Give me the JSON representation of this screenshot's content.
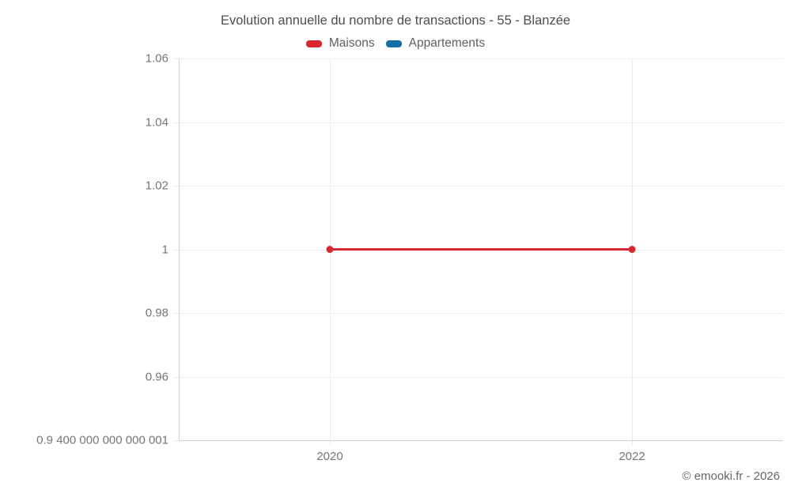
{
  "footer": {
    "credit": "© emooki.fr - 2026"
  },
  "chart_data": {
    "type": "line",
    "title": "Evolution annuelle du nombre de transactions - 55 - Blanzée",
    "xlabel": "",
    "ylabel": "",
    "xlim": [
      2019,
      2023
    ],
    "ylim": [
      0.94,
      1.06
    ],
    "grid": true,
    "legend_position": "top",
    "background_color": "#ffffff",
    "grid_color": "#ededed",
    "axis_color": "#d4d4d4",
    "tick_label_color": "#757575",
    "xticks": [
      {
        "value": 2020,
        "label": "2020"
      },
      {
        "value": 2022,
        "label": "2022"
      }
    ],
    "yticks": [
      {
        "value": 1.06,
        "label": "1.06"
      },
      {
        "value": 1.04,
        "label": "1.04"
      },
      {
        "value": 1.02,
        "label": "1.02"
      },
      {
        "value": 1,
        "label": "1"
      },
      {
        "value": 0.98,
        "label": "0.98"
      },
      {
        "value": 0.96,
        "label": "0.96"
      },
      {
        "value": 0.94,
        "label": "0.9 400 000 000 000 001"
      }
    ],
    "series": [
      {
        "name": "Maisons",
        "color": "#d7282f",
        "points": [
          [
            2020,
            1
          ],
          [
            2022,
            1
          ]
        ]
      },
      {
        "name": "Appartements",
        "color": "#1a6ea8",
        "points": []
      }
    ]
  }
}
